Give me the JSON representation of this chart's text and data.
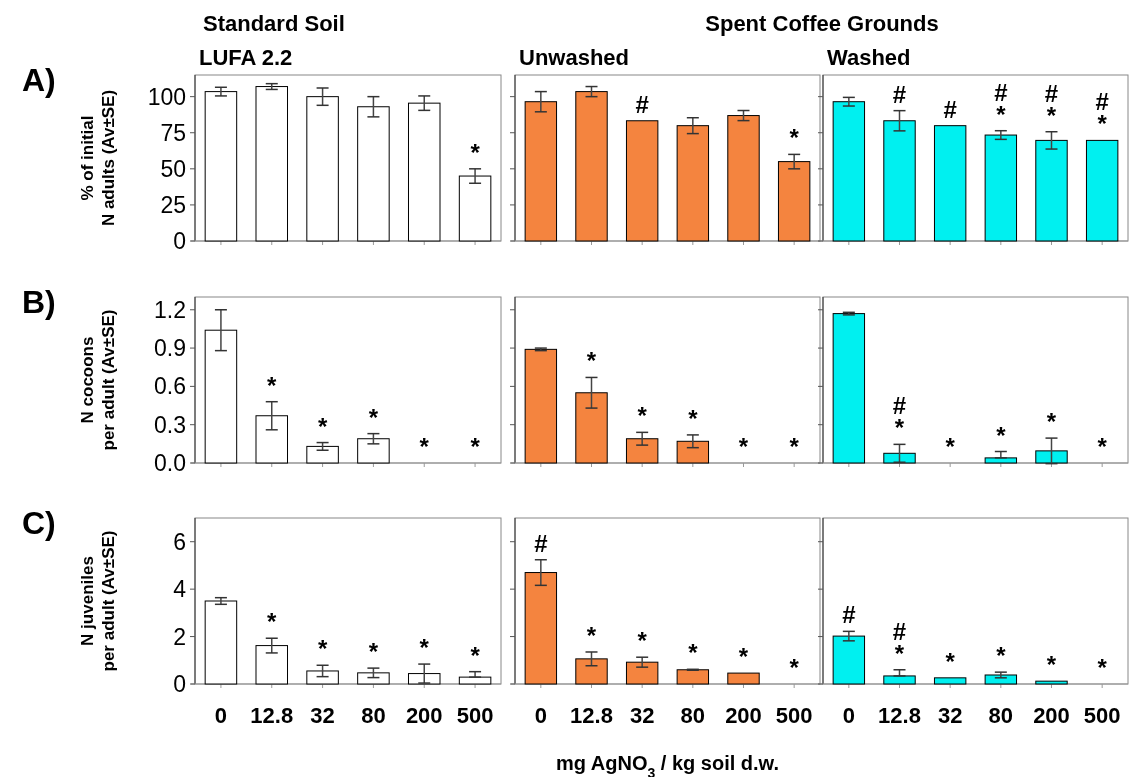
{
  "chart_data": [
    {
      "type": "bar",
      "title": "Standard Soil",
      "subtitle": "LUFA 2.2",
      "ylabel": "% of initial\nN adults (Av±SE)",
      "categories": [
        "0",
        "12.8",
        "32",
        "80",
        "200",
        "500"
      ],
      "values": [
        103.5,
        107,
        100,
        93,
        95.5,
        45
      ],
      "errors": [
        3,
        2,
        6,
        7,
        5,
        5
      ],
      "value_labels": [
        null,
        null,
        null,
        null,
        null,
        "*"
      ],
      "color": "#ffffff",
      "ylim": [
        0,
        115
      ],
      "yticks": [
        0,
        25,
        50,
        75,
        100
      ],
      "tick_labels": "y",
      "grid": false,
      "annotations": [
        "A)"
      ]
    },
    {
      "type": "bar",
      "title": "Spent Coffee Grounds",
      "subtitle": "Unwashed",
      "categories": [
        "0",
        "12.8",
        "32",
        "80",
        "200",
        "500"
      ],
      "values": [
        96.5,
        103.5,
        83.3,
        79.9,
        86.9,
        55
      ],
      "errors": [
        7,
        3.5,
        null,
        5.5,
        3.5,
        5
      ],
      "value_labels": [
        null,
        null,
        "#",
        null,
        null,
        "*"
      ],
      "color": "#f4843f",
      "ylim": [
        0,
        115
      ],
      "yticks": [
        0,
        25,
        50,
        75,
        100
      ],
      "tick_labels": false,
      "grid": false
    },
    {
      "type": "bar",
      "subtitle": "Washed",
      "categories": [
        "0",
        "12.8",
        "32",
        "80",
        "200",
        "500"
      ],
      "values": [
        96.5,
        83.3,
        79.9,
        73.4,
        69.7,
        69.7
      ],
      "errors": [
        3,
        7,
        null,
        3,
        6,
        null
      ],
      "value_labels": [
        null,
        "#",
        "#",
        "#\n*",
        "#\n*",
        "#\n*"
      ],
      "color": "#00f0f0",
      "ylim": [
        0,
        115
      ],
      "yticks": [
        0,
        25,
        50,
        75,
        100
      ],
      "tick_labels": false,
      "grid": false
    },
    {
      "type": "bar",
      "ylabel": "N cocoons\nper adult (Av±SE)",
      "categories": [
        "0",
        "12.8",
        "32",
        "80",
        "200",
        "500"
      ],
      "values": [
        1.04,
        0.37,
        0.13,
        0.19,
        0,
        0
      ],
      "errors": [
        0.16,
        0.11,
        0.03,
        0.04,
        null,
        null
      ],
      "value_labels": [
        null,
        "*",
        "*",
        "*",
        "*",
        "*"
      ],
      "color": "#ffffff",
      "ylim": [
        0,
        1.3
      ],
      "yticks": [
        {
          "value": 0,
          "label": "0.0"
        },
        0.3,
        0.6,
        0.9,
        1.2
      ],
      "tick_labels": "y",
      "grid": false,
      "annotations": [
        "B)"
      ]
    },
    {
      "type": "bar",
      "categories": [
        "0",
        "12.8",
        "32",
        "80",
        "200",
        "500"
      ],
      "values": [
        0.89,
        0.55,
        0.19,
        0.17,
        0,
        0
      ],
      "errors": [
        0.01,
        0.12,
        0.05,
        0.05,
        null,
        null
      ],
      "value_labels": [
        null,
        "*",
        "*",
        "*",
        "*",
        "*"
      ],
      "color": "#f4843f",
      "ylim": [
        0,
        1.3
      ],
      "yticks": [
        0,
        0.3,
        0.6,
        0.9,
        1.2
      ],
      "tick_labels": false,
      "grid": false
    },
    {
      "type": "bar",
      "categories": [
        "0",
        "12.8",
        "32",
        "80",
        "200",
        "500"
      ],
      "values": [
        1.17,
        0.076,
        0,
        0.04,
        0.095,
        0
      ],
      "errors": [
        0.01,
        0.07,
        null,
        [
          0.04,
          0.09
        ],
        0.1,
        null
      ],
      "value_labels": [
        null,
        "#\n*",
        "*",
        "*",
        "*",
        "*"
      ],
      "color": "#00f0f0",
      "ylim": [
        0,
        1.3
      ],
      "yticks": [
        0,
        0.3,
        0.6,
        0.9,
        1.2
      ],
      "tick_labels": false,
      "grid": false
    },
    {
      "type": "bar",
      "ylabel": "N juveniles\nper adult (Av±SE)",
      "categories": [
        "0",
        "12.8",
        "32",
        "80",
        "200",
        "500"
      ],
      "values": [
        3.5,
        1.62,
        0.55,
        0.47,
        0.44,
        0.29
      ],
      "errors": [
        0.14,
        0.31,
        0.24,
        0.2,
        0.4,
        [
          0.29,
          0.52
        ]
      ],
      "value_labels": [
        null,
        "*",
        "*",
        "*",
        "*",
        "*"
      ],
      "color": "#ffffff",
      "ylim": [
        0,
        7
      ],
      "yticks": [
        0,
        2,
        4,
        6
      ],
      "grid": false,
      "annotations": [
        "C)"
      ]
    },
    {
      "type": "bar",
      "xlabel": "mg AgNO$_{3}$ / kg soil d.w.",
      "categories": [
        "0",
        "12.8",
        "32",
        "80",
        "200",
        "500"
      ],
      "values": [
        4.7,
        1.06,
        0.92,
        0.6,
        0.46,
        0
      ],
      "errors": [
        0.54,
        0.29,
        0.21,
        0.02,
        null,
        null
      ],
      "value_labels": [
        "#",
        "*",
        "*",
        "*",
        "*",
        "*"
      ],
      "color": "#f4843f",
      "ylim": [
        0,
        7
      ],
      "yticks": [
        0,
        2,
        4,
        6
      ],
      "tick_labels": "x",
      "grid": false
    },
    {
      "type": "bar",
      "categories": [
        "0",
        "12.8",
        "32",
        "80",
        "200",
        "500"
      ],
      "values": [
        2.02,
        0.34,
        0.26,
        0.38,
        0.12,
        0
      ],
      "errors": [
        0.2,
        [
          0.34,
          0.6
        ],
        null,
        0.12,
        null,
        null
      ],
      "value_labels": [
        "#",
        "#\n*",
        "*",
        "*",
        "*",
        "*"
      ],
      "color": "#00f0f0",
      "ylim": [
        0,
        7
      ],
      "yticks": [
        0,
        2,
        4,
        6
      ],
      "tick_labels": "x",
      "grid": false
    }
  ]
}
